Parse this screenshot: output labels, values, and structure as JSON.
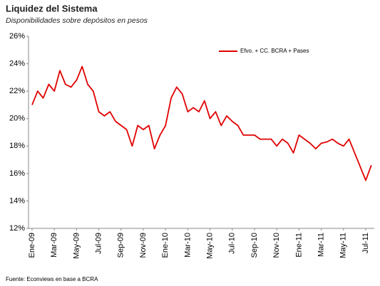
{
  "chart_data": {
    "type": "line",
    "title": "Liquidez del Sistema",
    "subtitle": "Disponibilidades sobre depósitos en pesos",
    "source": "Fuente: Econviews en base a BCRA",
    "categories": [
      "Ene-09",
      null,
      null,
      null,
      "Mar-09",
      null,
      null,
      null,
      "May-09",
      null,
      null,
      null,
      "Jul-09",
      null,
      null,
      null,
      "Sep-09",
      null,
      null,
      null,
      "Nov-09",
      null,
      null,
      null,
      "Ene-10",
      null,
      null,
      null,
      "Mar-10",
      null,
      null,
      null,
      "May-10",
      null,
      null,
      null,
      "Jul-10",
      null,
      null,
      null,
      "Sep-10",
      null,
      null,
      null,
      "Nov-10",
      null,
      null,
      null,
      "Ene-11",
      null,
      null,
      null,
      "Mar-11",
      null,
      null,
      null,
      "May-11",
      null,
      null,
      null,
      "Jul-11",
      null
    ],
    "series": [
      {
        "name": "Efvo. + CC. BCRA + Pases",
        "color": "#e00000",
        "values": [
          21.0,
          22.0,
          21.5,
          22.5,
          22.0,
          23.5,
          22.5,
          22.3,
          22.8,
          23.8,
          22.5,
          22.0,
          20.5,
          20.2,
          20.5,
          19.8,
          19.5,
          19.2,
          18.0,
          19.5,
          19.2,
          19.5,
          17.8,
          18.8,
          19.5,
          21.5,
          22.3,
          21.8,
          20.5,
          20.8,
          20.5,
          21.3,
          20.0,
          20.5,
          19.5,
          20.2,
          19.8,
          19.5,
          18.8,
          18.8,
          18.8,
          18.5,
          18.5,
          18.5,
          18.0,
          18.5,
          18.2,
          17.5,
          18.8,
          18.5,
          18.2,
          17.8,
          18.2,
          18.3,
          18.5,
          18.2,
          18.0,
          18.5,
          17.5,
          16.5,
          15.5,
          16.6
        ]
      }
    ],
    "ylim": [
      12,
      26
    ],
    "yticks": [
      {
        "value": 12,
        "label": "12%"
      },
      {
        "value": 14,
        "label": "14%"
      },
      {
        "value": 16,
        "label": "16%"
      },
      {
        "value": 18,
        "label": "18%"
      },
      {
        "value": 20,
        "label": "20%"
      },
      {
        "value": 22,
        "label": "22%"
      },
      {
        "value": 24,
        "label": "24%"
      },
      {
        "value": 26,
        "label": "26%"
      }
    ],
    "grid": false,
    "legend": "top-right"
  }
}
